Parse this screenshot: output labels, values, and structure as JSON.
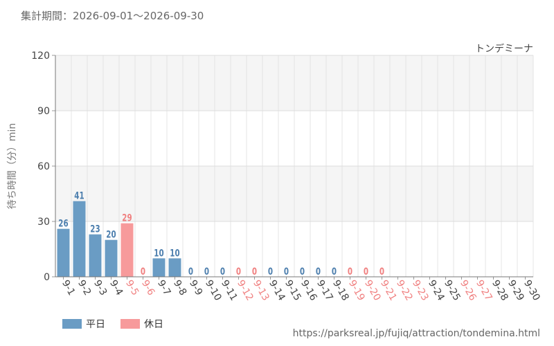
{
  "header": {
    "period": "集計期間：2026-09-01～2026-09-30",
    "attraction": "トンデミーナ"
  },
  "footer": {
    "source": "https://parksreal.jp/fujiq/attraction/tondemina.html"
  },
  "colors": {
    "weekday": "#6a9cc4",
    "holiday": "#f79a9b",
    "weekday_label": "#4d7fae",
    "holiday_label": "#f08080"
  },
  "chart_data": {
    "type": "bar",
    "title": "",
    "xlabel": "",
    "ylabel": "待ち時間（分）min",
    "ylim": [
      0,
      120
    ],
    "yticks": [
      "0",
      "30",
      "60",
      "90",
      "120"
    ],
    "categories": [
      "9-1",
      "9-2",
      "9-3",
      "9-4",
      "9-5",
      "9-6",
      "9-7",
      "9-8",
      "9-9",
      "9-10",
      "9-11",
      "9-12",
      "9-13",
      "9-14",
      "9-15",
      "9-16",
      "9-17",
      "9-18",
      "9-19",
      "9-20",
      "9-21",
      "9-22",
      "9-23",
      "9-24",
      "9-25",
      "9-26",
      "9-27",
      "9-28",
      "9-29",
      "9-30"
    ],
    "values": [
      26,
      41,
      23,
      20,
      29,
      0,
      10,
      10,
      0,
      0,
      0,
      0,
      0,
      0,
      0,
      0,
      0,
      0,
      0,
      0,
      0,
      null,
      null,
      null,
      null,
      null,
      null,
      null,
      null,
      null
    ],
    "day_type": [
      "weekday",
      "weekday",
      "weekday",
      "weekday",
      "holiday",
      "holiday",
      "weekday",
      "weekday",
      "weekday",
      "weekday",
      "weekday",
      "holiday",
      "holiday",
      "weekday",
      "weekday",
      "weekday",
      "weekday",
      "weekday",
      "holiday",
      "holiday",
      "holiday",
      "holiday",
      "holiday",
      "weekday",
      "weekday",
      "holiday",
      "holiday",
      "weekday",
      "weekday",
      "weekday"
    ],
    "legend": [
      {
        "key": "weekday",
        "label": "平日"
      },
      {
        "key": "holiday",
        "label": "休日"
      }
    ],
    "legend_position": "bottom-left",
    "grid": true
  }
}
